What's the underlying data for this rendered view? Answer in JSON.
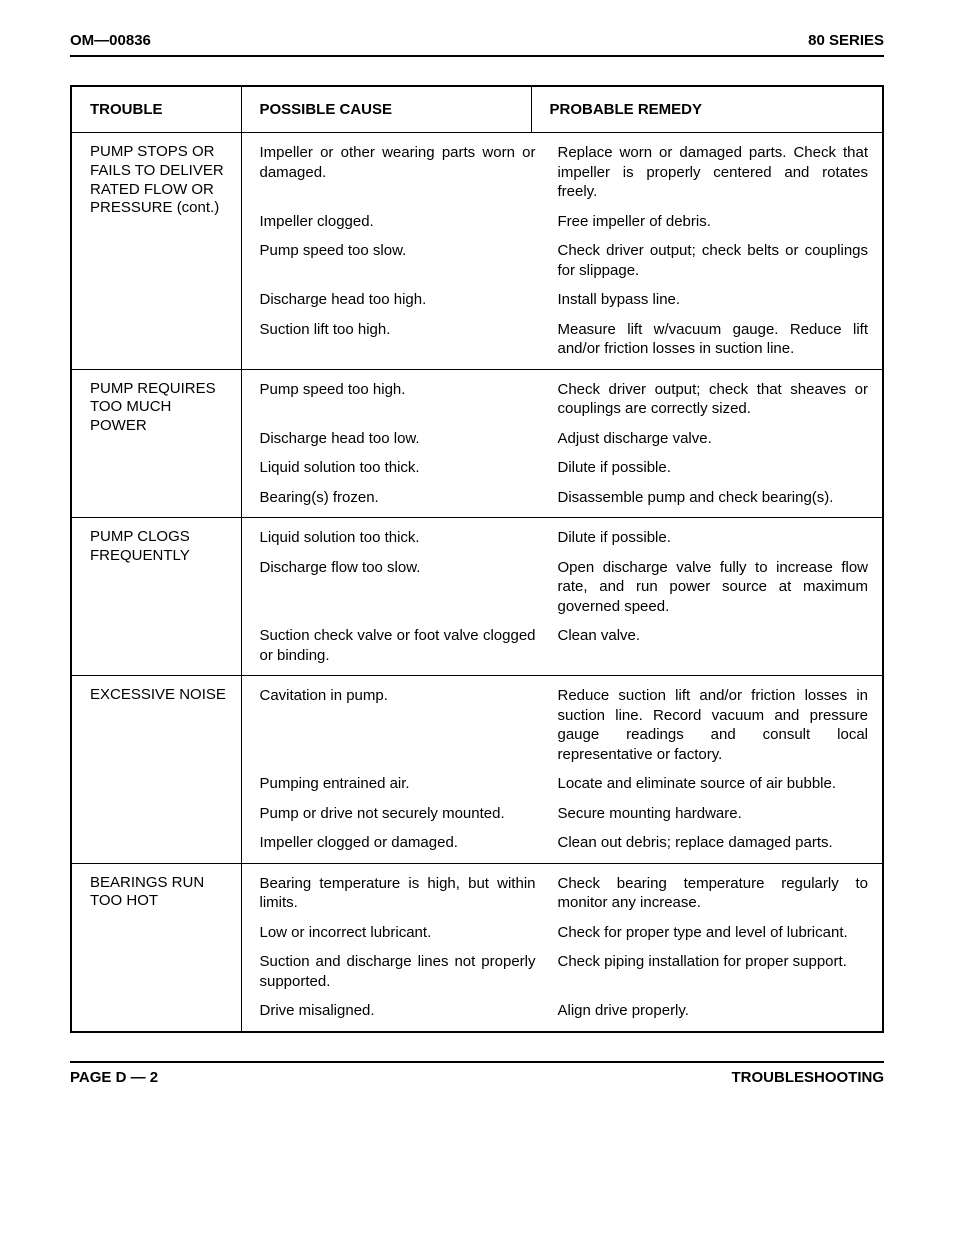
{
  "header": {
    "left": "OM—00836",
    "right": "80 SERIES"
  },
  "footer": {
    "left": "PAGE D — 2",
    "right": "TROUBLESHOOTING"
  },
  "columns": {
    "trouble": "TROUBLE",
    "cause": "POSSIBLE CAUSE",
    "remedy": "PROBABLE REMEDY"
  },
  "sections": [
    {
      "trouble": "PUMP STOPS OR FAILS TO DELIVER RATED FLOW OR PRESSURE (cont.)",
      "rows": [
        {
          "cause": "Impeller or other wearing parts worn or damaged.",
          "remedy": "Replace worn or damaged parts. Check that impeller is properly centered and rotates freely."
        },
        {
          "cause": "Impeller clogged.",
          "remedy": "Free impeller of debris."
        },
        {
          "cause": "Pump speed too slow.",
          "remedy": "Check driver output; check belts or couplings for slippage."
        },
        {
          "cause": "Discharge head too high.",
          "remedy": "Install bypass line."
        },
        {
          "cause": "Suction lift too high.",
          "remedy": "Measure lift w/vacuum gauge. Reduce lift and/or friction losses in suction line."
        }
      ]
    },
    {
      "trouble": "PUMP REQUIRES TOO MUCH POWER",
      "rows": [
        {
          "cause": "Pump speed too high.",
          "remedy": "Check driver output; check that sheaves or couplings are correctly sized."
        },
        {
          "cause": "Discharge head too low.",
          "remedy": "Adjust discharge valve."
        },
        {
          "cause": "Liquid solution too thick.",
          "remedy": "Dilute if possible."
        },
        {
          "cause": "Bearing(s) frozen.",
          "remedy": "Disassemble pump and check bearing(s)."
        }
      ]
    },
    {
      "trouble": "PUMP CLOGS FREQUENTLY",
      "rows": [
        {
          "cause": "Liquid solution too thick.",
          "remedy": "Dilute if possible."
        },
        {
          "cause": "Discharge flow too slow.",
          "remedy": "Open discharge valve fully to increase flow rate, and run power source at maximum governed speed."
        },
        {
          "cause": "Suction check valve or foot valve clogged or binding.",
          "remedy": "Clean valve."
        }
      ]
    },
    {
      "trouble": "EXCESSIVE NOISE",
      "rows": [
        {
          "cause": "Cavitation in pump.",
          "remedy": "Reduce suction lift and/or friction losses in suction line. Record vacuum and pressure gauge readings and consult local representative or factory."
        },
        {
          "cause": "Pumping entrained air.",
          "remedy": "Locate and eliminate source of air bubble."
        },
        {
          "cause": "Pump or drive not securely mounted.",
          "remedy": "Secure mounting hardware."
        },
        {
          "cause": "Impeller clogged or damaged.",
          "remedy": "Clean out debris; replace damaged parts."
        }
      ]
    },
    {
      "trouble": "BEARINGS RUN TOO HOT",
      "rows": [
        {
          "cause": "Bearing temperature is high, but within limits.",
          "remedy": "Check bearing temperature regularly to monitor any increase."
        },
        {
          "cause": "Low or incorrect lubricant.",
          "remedy": "Check for proper type and level of lubricant."
        },
        {
          "cause": "Suction and discharge lines not properly supported.",
          "remedy": "Check piping installation for proper support."
        },
        {
          "cause": "Drive misaligned.",
          "remedy": "Align drive properly."
        }
      ]
    }
  ]
}
